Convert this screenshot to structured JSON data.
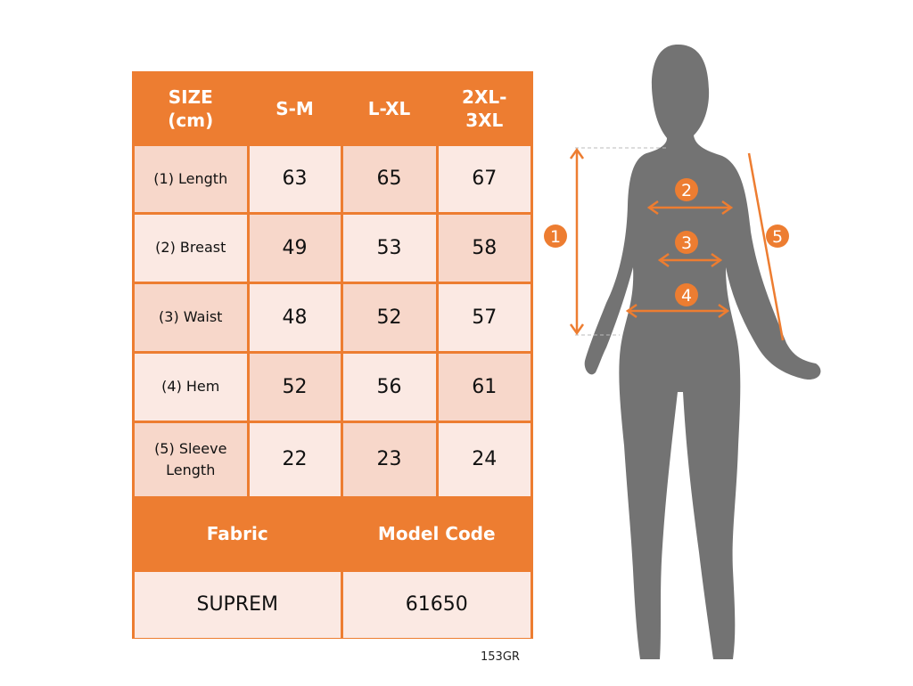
{
  "table": {
    "header": [
      "SIZE\n(cm)",
      "S-M",
      "L-XL",
      "2XL-\n3XL"
    ],
    "rows": [
      {
        "label": "(1) Length",
        "values": [
          "63",
          "65",
          "67"
        ]
      },
      {
        "label": "(2) Breast",
        "values": [
          "49",
          "53",
          "58"
        ]
      },
      {
        "label": "(3) Waist",
        "values": [
          "48",
          "52",
          "57"
        ]
      },
      {
        "label": "(4) Hem",
        "values": [
          "52",
          "56",
          "61"
        ]
      },
      {
        "label": "(5) Sleeve\nLength",
        "values": [
          "22",
          "23",
          "24"
        ]
      }
    ],
    "footer_header": [
      "Fabric",
      "Model Code"
    ],
    "footer_values": [
      "SUPREM",
      "61650"
    ]
  },
  "product_code": "153GR",
  "figure": {
    "markers": [
      "1",
      "2",
      "3",
      "4",
      "5"
    ]
  },
  "colors": {
    "accent": "#ED7D31",
    "cell_dark": "#F7D7CA",
    "cell_light": "#FBE9E3",
    "silhouette": "#737373"
  }
}
